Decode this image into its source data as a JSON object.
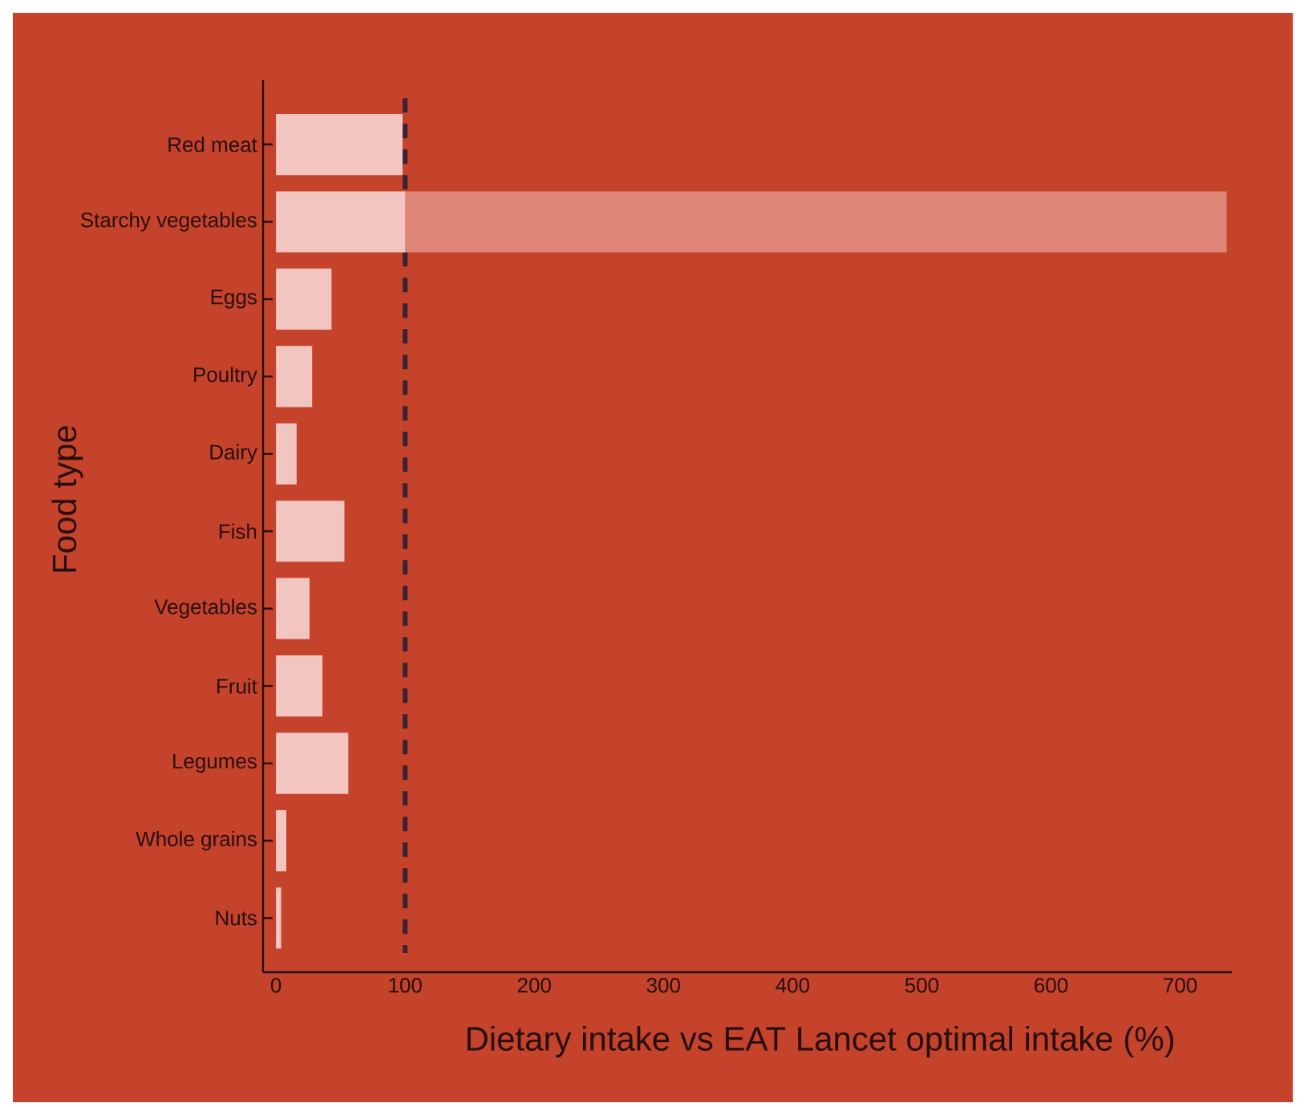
{
  "chart_data": {
    "type": "bar",
    "orientation": "horizontal",
    "stacked": true,
    "categories": [
      "Red meat",
      "Starchy vegetables",
      "Eggs",
      "Poultry",
      "Dairy",
      "Fish",
      "Vegetables",
      "Fruit",
      "Legumes",
      "Whole grains",
      "Nuts"
    ],
    "series": [
      {
        "color": "#f2c5c0",
        "values": [
          98,
          100,
          43,
          28,
          16,
          53,
          26,
          36,
          56,
          8,
          4
        ]
      },
      {
        "color": "#de8577",
        "values": [
          null,
          638,
          null,
          null,
          null,
          null,
          null,
          null,
          null,
          null,
          null
        ]
      }
    ],
    "xlabel": "Dietary intake vs EAT Lancet optimal intake (%)",
    "ylabel": "Food type",
    "xlim": [
      -10,
      740
    ],
    "xticks": [
      0,
      100,
      200,
      300,
      400,
      500,
      600,
      700
    ],
    "ref_lines": [
      {
        "axis": "x",
        "value": 100,
        "color": "#3b2230",
        "line_style": "dashed"
      }
    ]
  }
}
